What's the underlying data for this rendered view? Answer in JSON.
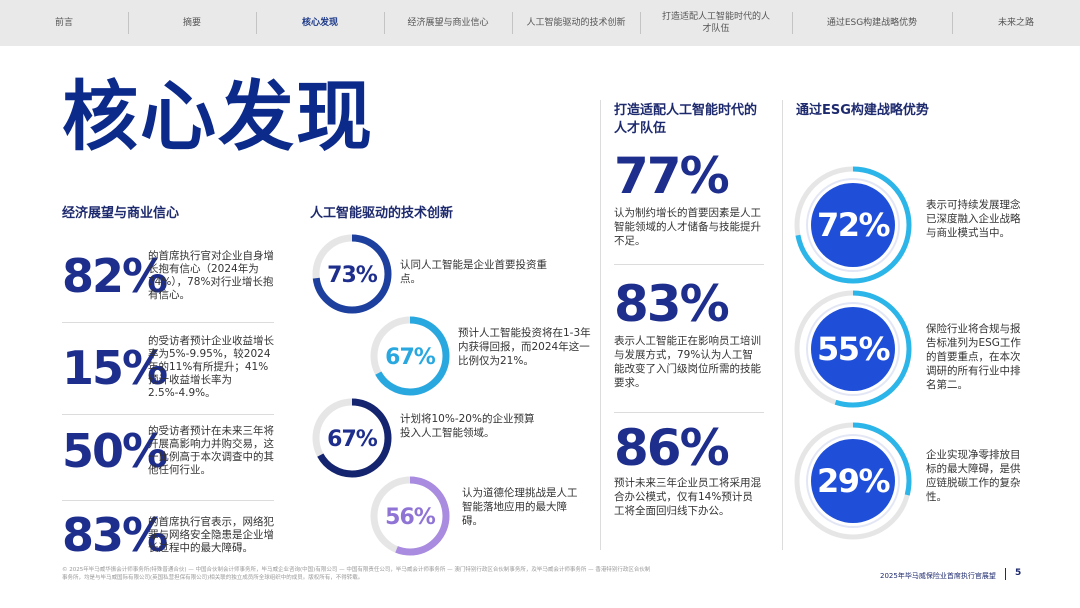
{
  "nav": {
    "tabs": [
      {
        "label": "前言"
      },
      {
        "label": "摘要"
      },
      {
        "label": "核心发现"
      },
      {
        "label": "经济展望与商业信心"
      },
      {
        "label": "人工智能驱动的技术创新"
      },
      {
        "label": "打造适配人工智能时代的人才队伍"
      },
      {
        "label": "通过ESG构建战略优势"
      },
      {
        "label": "未来之路"
      }
    ],
    "active_index": 2
  },
  "page_title": "核心发现",
  "col1": {
    "title": "经济展望与商业信心",
    "stats": [
      {
        "value": "82%",
        "text": "的首席执行官对企业自身增长抱有信心（2024年为74%），78%对行业增长抱有信心。"
      },
      {
        "value": "15%",
        "text": "的受访者预计企业收益增长率为5%-9.95%，较2024年的11%有所提升；41%预计收益增长率为2.5%-4.9%。"
      },
      {
        "value": "50%",
        "text": "的受访者预计在未来三年将开展高影响力并购交易，这一比例高于本次调查中的其他任何行业。"
      },
      {
        "value": "83%",
        "text": "的首席执行官表示，网络犯罪与网络安全隐患是企业增长过程中的最大障碍。"
      }
    ]
  },
  "col2": {
    "title": "人工智能驱动的技术创新",
    "items": [
      {
        "value": "73%",
        "fraction": 0.73,
        "color": "#1d3f9e",
        "text": "认同人工智能是企业首要投资重点。"
      },
      {
        "value": "67%",
        "fraction": 0.67,
        "color": "#29a8e0",
        "text": "预计人工智能投资将在1-3年内获得回报，而2024年这一比例仅为21%。"
      },
      {
        "value": "67%",
        "fraction": 0.67,
        "color": "#14246e",
        "text": "计划将10%-20%的企业预算投入人工智能领域。"
      },
      {
        "value": "56%",
        "fraction": 0.56,
        "color": "#a98be0",
        "text": "认为道德伦理挑战是人工智能落地应用的最大障碍。"
      }
    ]
  },
  "col3": {
    "title": "打造适配人工智能时代的人才队伍",
    "stats": [
      {
        "value": "77%",
        "text": "认为制约增长的首要因素是人工智能领域的人才储备与技能提升不足。"
      },
      {
        "value": "83%",
        "text": "表示人工智能正在影响员工培训与发展方式，79%认为人工智能改变了入门级岗位所需的技能要求。"
      },
      {
        "value": "86%",
        "text": "预计未来三年企业员工将采用混合办公模式，仅有14%预计员工将全面回归线下办公。"
      }
    ]
  },
  "col4": {
    "title": "通过ESG构建战略优势",
    "items": [
      {
        "value": "72%",
        "fraction": 0.72,
        "text": "表示可持续发展理念已深度融入企业战略与商业模式当中。"
      },
      {
        "value": "55%",
        "fraction": 0.55,
        "text": "保险行业将合规与报告标准列为ESG工作的首要重点，在本次调研的所有行业中排名第二。"
      },
      {
        "value": "29%",
        "fraction": 0.29,
        "text": "企业实现净零排放目标的最大障碍，是供应链脱碳工作的复杂性。"
      }
    ]
  },
  "colors": {
    "navy": "#1e2e8c",
    "ring_blue": "#1f4fd8",
    "ring_cyan": "#2bb5e8",
    "track": "#e6e6e6"
  },
  "footer": {
    "note": "© 2025年毕马威华振会计师事务所(特殊普通合伙) — 中国合伙制会计师事务所，毕马威企业咨询(中国)有限公司 — 中国有限责任公司，毕马威会计师事务所 — 澳门特别行政区合伙制事务所，及毕马威会计师事务所 — 香港特别行政区合伙制事务所，均是与毕马威国际有限公司(英国私营担保有限公司)相关联的独立成员所全球组织中的成员。版权所有，不得转载。",
    "title": "2025年毕马威保险业首席执行官展望",
    "page": "5"
  }
}
